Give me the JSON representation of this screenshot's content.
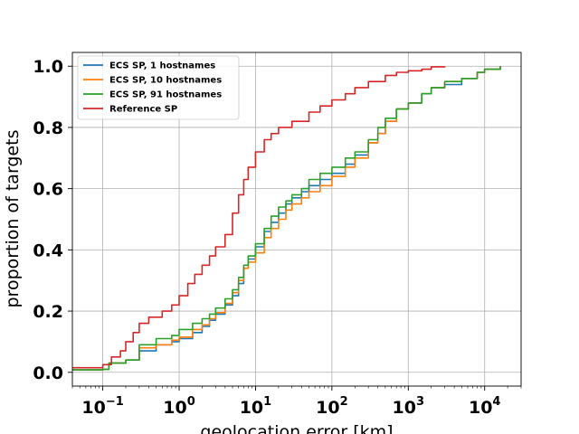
{
  "chart_data": {
    "type": "line",
    "title": "",
    "xlabel": "geolocation error [km]",
    "ylabel": "proportion of targets",
    "xscale": "log",
    "xlim": [
      0.04,
      30000
    ],
    "ylim": [
      -0.045,
      1.045
    ],
    "grid": true,
    "legend_position": "top-left",
    "x_ticks": [
      {
        "value": 0.1,
        "base": "10",
        "exp": "−1"
      },
      {
        "value": 1,
        "base": "10",
        "exp": "0"
      },
      {
        "value": 10,
        "base": "10",
        "exp": "1"
      },
      {
        "value": 100,
        "base": "10",
        "exp": "2"
      },
      {
        "value": 1000,
        "base": "10",
        "exp": "3"
      },
      {
        "value": 10000,
        "base": "10",
        "exp": "4"
      }
    ],
    "y_ticks": [
      {
        "value": 0.0,
        "label": "0.0"
      },
      {
        "value": 0.2,
        "label": "0.2"
      },
      {
        "value": 0.4,
        "label": "0.4"
      },
      {
        "value": 0.6,
        "label": "0.6"
      },
      {
        "value": 0.8,
        "label": "0.8"
      },
      {
        "value": 1.0,
        "label": "1.0"
      }
    ],
    "series": [
      {
        "name": "ECS SP, 1 hostnames",
        "color": "#1f77b4",
        "points": [
          [
            0.04,
            0.008
          ],
          [
            0.1,
            0.01
          ],
          [
            0.12,
            0.03
          ],
          [
            0.2,
            0.04
          ],
          [
            0.3,
            0.07
          ],
          [
            0.5,
            0.09
          ],
          [
            0.8,
            0.1
          ],
          [
            1.0,
            0.11
          ],
          [
            1.5,
            0.13
          ],
          [
            2.0,
            0.15
          ],
          [
            2.5,
            0.17
          ],
          [
            3.0,
            0.19
          ],
          [
            4.0,
            0.22
          ],
          [
            5.0,
            0.25
          ],
          [
            6.0,
            0.29
          ],
          [
            7.0,
            0.34
          ],
          [
            8.0,
            0.37
          ],
          [
            10,
            0.41
          ],
          [
            13,
            0.46
          ],
          [
            16,
            0.49
          ],
          [
            20,
            0.52
          ],
          [
            25,
            0.55
          ],
          [
            30,
            0.57
          ],
          [
            40,
            0.59
          ],
          [
            50,
            0.61
          ],
          [
            70,
            0.63
          ],
          [
            100,
            0.65
          ],
          [
            150,
            0.68
          ],
          [
            200,
            0.71
          ],
          [
            300,
            0.75
          ],
          [
            400,
            0.78
          ],
          [
            500,
            0.82
          ],
          [
            700,
            0.86
          ],
          [
            1000,
            0.88
          ],
          [
            1500,
            0.91
          ],
          [
            2000,
            0.93
          ],
          [
            3000,
            0.94
          ],
          [
            5000,
            0.96
          ],
          [
            8000,
            0.98
          ],
          [
            10000,
            0.99
          ],
          [
            16000,
            1.0
          ]
        ]
      },
      {
        "name": "ECS SP, 10 hostnames",
        "color": "#ff7f0e",
        "points": [
          [
            0.04,
            0.008
          ],
          [
            0.1,
            0.01
          ],
          [
            0.12,
            0.03
          ],
          [
            0.2,
            0.04
          ],
          [
            0.3,
            0.08
          ],
          [
            0.5,
            0.09
          ],
          [
            0.8,
            0.105
          ],
          [
            1.0,
            0.115
          ],
          [
            1.5,
            0.14
          ],
          [
            2.0,
            0.155
          ],
          [
            2.5,
            0.175
          ],
          [
            3.0,
            0.195
          ],
          [
            4.0,
            0.225
          ],
          [
            5.0,
            0.26
          ],
          [
            6.0,
            0.3
          ],
          [
            7.0,
            0.34
          ],
          [
            8.0,
            0.36
          ],
          [
            10,
            0.39
          ],
          [
            13,
            0.44
          ],
          [
            16,
            0.47
          ],
          [
            20,
            0.5
          ],
          [
            25,
            0.53
          ],
          [
            30,
            0.55
          ],
          [
            40,
            0.57
          ],
          [
            50,
            0.59
          ],
          [
            70,
            0.61
          ],
          [
            100,
            0.64
          ],
          [
            150,
            0.67
          ],
          [
            200,
            0.7
          ],
          [
            300,
            0.75
          ],
          [
            400,
            0.78
          ],
          [
            500,
            0.82
          ],
          [
            700,
            0.86
          ],
          [
            1000,
            0.88
          ],
          [
            1500,
            0.91
          ],
          [
            2000,
            0.93
          ],
          [
            3000,
            0.95
          ],
          [
            5000,
            0.96
          ],
          [
            8000,
            0.98
          ],
          [
            10000,
            0.99
          ],
          [
            16000,
            1.0
          ]
        ]
      },
      {
        "name": "ECS SP, 91 hostnames",
        "color": "#2ca02c",
        "points": [
          [
            0.04,
            0.008
          ],
          [
            0.1,
            0.01
          ],
          [
            0.12,
            0.03
          ],
          [
            0.2,
            0.04
          ],
          [
            0.3,
            0.09
          ],
          [
            0.5,
            0.11
          ],
          [
            0.8,
            0.12
          ],
          [
            1.0,
            0.14
          ],
          [
            1.5,
            0.16
          ],
          [
            2.0,
            0.175
          ],
          [
            2.5,
            0.19
          ],
          [
            3.0,
            0.21
          ],
          [
            4.0,
            0.24
          ],
          [
            5.0,
            0.27
          ],
          [
            6.0,
            0.31
          ],
          [
            7.0,
            0.35
          ],
          [
            8.0,
            0.38
          ],
          [
            10,
            0.42
          ],
          [
            13,
            0.47
          ],
          [
            16,
            0.51
          ],
          [
            20,
            0.54
          ],
          [
            25,
            0.56
          ],
          [
            30,
            0.58
          ],
          [
            40,
            0.6
          ],
          [
            50,
            0.63
          ],
          [
            70,
            0.65
          ],
          [
            100,
            0.67
          ],
          [
            150,
            0.7
          ],
          [
            200,
            0.72
          ],
          [
            300,
            0.76
          ],
          [
            400,
            0.8
          ],
          [
            500,
            0.83
          ],
          [
            700,
            0.86
          ],
          [
            1000,
            0.88
          ],
          [
            1500,
            0.91
          ],
          [
            2000,
            0.93
          ],
          [
            3000,
            0.95
          ],
          [
            5000,
            0.96
          ],
          [
            8000,
            0.98
          ],
          [
            10000,
            0.99
          ],
          [
            16000,
            1.0
          ]
        ]
      },
      {
        "name": "Reference SP",
        "color": "#d62728",
        "points": [
          [
            0.04,
            0.015
          ],
          [
            0.08,
            0.015
          ],
          [
            0.1,
            0.025
          ],
          [
            0.13,
            0.05
          ],
          [
            0.17,
            0.07
          ],
          [
            0.2,
            0.1
          ],
          [
            0.25,
            0.13
          ],
          [
            0.3,
            0.16
          ],
          [
            0.4,
            0.18
          ],
          [
            0.6,
            0.2
          ],
          [
            0.8,
            0.22
          ],
          [
            1.0,
            0.25
          ],
          [
            1.3,
            0.29
          ],
          [
            1.6,
            0.32
          ],
          [
            2.0,
            0.35
          ],
          [
            2.5,
            0.38
          ],
          [
            3.0,
            0.41
          ],
          [
            4.0,
            0.45
          ],
          [
            5.0,
            0.52
          ],
          [
            6.0,
            0.58
          ],
          [
            7.0,
            0.63
          ],
          [
            8.0,
            0.67
          ],
          [
            10,
            0.72
          ],
          [
            13,
            0.76
          ],
          [
            16,
            0.78
          ],
          [
            20,
            0.8
          ],
          [
            30,
            0.82
          ],
          [
            50,
            0.85
          ],
          [
            70,
            0.87
          ],
          [
            100,
            0.89
          ],
          [
            150,
            0.91
          ],
          [
            200,
            0.93
          ],
          [
            300,
            0.95
          ],
          [
            500,
            0.97
          ],
          [
            700,
            0.98
          ],
          [
            1000,
            0.985
          ],
          [
            1500,
            0.99
          ],
          [
            2000,
            0.998
          ],
          [
            3000,
            1.0
          ]
        ]
      }
    ]
  }
}
